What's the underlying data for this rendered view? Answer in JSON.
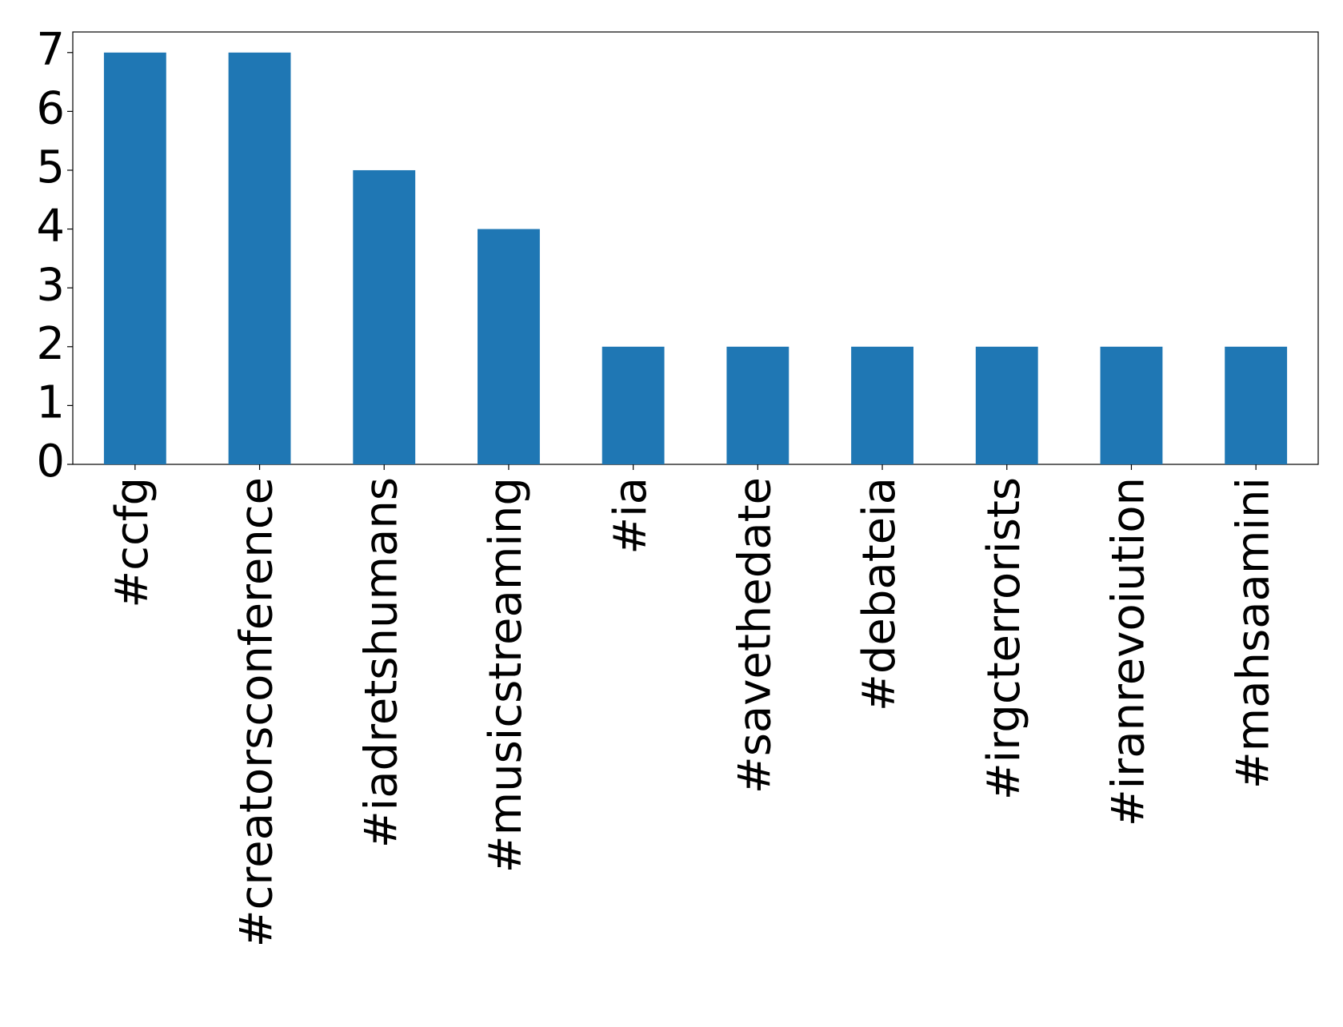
{
  "chart_data": {
    "type": "bar",
    "categories": [
      "#ccfg",
      "#creatorsconference",
      "#iadretshumans",
      "#musicstreaming",
      "#ia",
      "#savethedate",
      "#debateia",
      "#irgcterrorists",
      "#iranrevoiution",
      "#mahsaamini"
    ],
    "values": [
      7,
      7,
      5,
      4,
      2,
      2,
      2,
      2,
      2,
      2
    ],
    "color": "#1f77b4",
    "ylim": [
      0,
      7.35
    ],
    "yticks": [
      0,
      1,
      2,
      3,
      4,
      5,
      6,
      7
    ],
    "grid": false
  }
}
